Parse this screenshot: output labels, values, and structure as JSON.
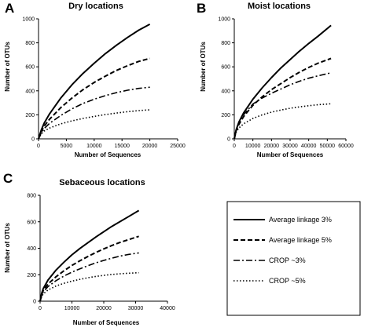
{
  "series_styles": [
    {
      "name": "Average linkage 3%",
      "dash": "none",
      "width": 2.0
    },
    {
      "name": "Average linkage 5%",
      "dash": "6,3",
      "width": 2.0
    },
    {
      "name": "CROP ~3%",
      "dash": "8,3,2,3",
      "width": 1.6
    },
    {
      "name": "CROP ~5%",
      "dash": "1.5,2.5",
      "width": 1.6
    }
  ],
  "colors": {
    "line": "#000000",
    "axis": "#000000",
    "background": "#ffffff"
  },
  "chart_data": [
    {
      "panel": "A",
      "type": "line",
      "title": "Dry locations",
      "xlabel": "Number of Sequences",
      "ylabel": "Number of OTUs",
      "xlim": [
        0,
        25000
      ],
      "ylim": [
        0,
        1000
      ],
      "xticks": [
        "0",
        "5000",
        "10000",
        "15000",
        "20000",
        "25000"
      ],
      "yticks": [
        "0",
        "200",
        "400",
        "600",
        "800",
        "1000"
      ],
      "grid": false,
      "x": [
        0,
        500,
        1000,
        2000,
        4000,
        6000,
        8000,
        10000,
        12000,
        14000,
        16000,
        18000,
        20000
      ],
      "series": [
        {
          "name": "Average linkage 3%",
          "values": [
            0,
            73,
            130,
            210,
            340,
            450,
            545,
            630,
            710,
            780,
            845,
            905,
            955
          ]
        },
        {
          "name": "Average linkage 5%",
          "values": [
            0,
            60,
            105,
            165,
            260,
            340,
            410,
            470,
            522,
            570,
            610,
            645,
            670
          ]
        },
        {
          "name": "CROP ~3%",
          "values": [
            0,
            50,
            85,
            130,
            195,
            250,
            295,
            330,
            360,
            385,
            405,
            420,
            430
          ]
        },
        {
          "name": "CROP ~5%",
          "values": [
            0,
            40,
            65,
            90,
            125,
            150,
            170,
            187,
            202,
            215,
            226,
            235,
            242
          ]
        }
      ]
    },
    {
      "panel": "B",
      "type": "line",
      "title": "Moist locations",
      "xlabel": "Number of Sequences",
      "ylabel": "Number of OTUs",
      "xlim": [
        0,
        60000
      ],
      "ylim": [
        0,
        1000
      ],
      "xticks": [
        "0",
        "10000",
        "20000",
        "30000",
        "40000",
        "50000",
        "60000"
      ],
      "yticks": [
        "0",
        "200",
        "400",
        "600",
        "800",
        "1000"
      ],
      "grid": false,
      "x": [
        0,
        1000,
        2500,
        5000,
        10000,
        15000,
        20000,
        25000,
        30000,
        35000,
        40000,
        45000,
        52000
      ],
      "series": [
        {
          "name": "Average linkage 3%",
          "values": [
            0,
            75,
            140,
            215,
            330,
            425,
            510,
            590,
            660,
            730,
            795,
            855,
            945
          ]
        },
        {
          "name": "Average linkage 5%",
          "values": [
            0,
            70,
            120,
            185,
            280,
            350,
            410,
            460,
            510,
            555,
            595,
            630,
            670
          ]
        },
        {
          "name": "CROP ~3%",
          "values": [
            0,
            75,
            135,
            200,
            290,
            340,
            380,
            415,
            450,
            480,
            505,
            525,
            550
          ]
        },
        {
          "name": "CROP ~5%",
          "values": [
            0,
            55,
            90,
            125,
            170,
            200,
            222,
            240,
            255,
            266,
            276,
            284,
            292
          ]
        }
      ]
    },
    {
      "panel": "C",
      "type": "line",
      "title": "Sebaceous locations",
      "xlabel": "Number of Sequences",
      "ylabel": "Number of OTUs",
      "xlim": [
        0,
        40000
      ],
      "ylim": [
        0,
        800
      ],
      "xticks": [
        "0",
        "10000",
        "20000",
        "30000",
        "40000"
      ],
      "yticks": [
        "0",
        "200",
        "400",
        "600",
        "800"
      ],
      "grid": false,
      "x": [
        0,
        500,
        1000,
        2500,
        5000,
        7500,
        10000,
        12500,
        15000,
        17500,
        20000,
        22500,
        25000,
        27500,
        31000
      ],
      "series": [
        {
          "name": "Average linkage 3%",
          "values": [
            0,
            60,
            95,
            160,
            235,
            295,
            350,
            398,
            442,
            485,
            525,
            565,
            600,
            635,
            685
          ]
        },
        {
          "name": "Average linkage 5%",
          "values": [
            0,
            50,
            80,
            130,
            185,
            230,
            270,
            305,
            338,
            368,
            395,
            420,
            443,
            463,
            490
          ]
        },
        {
          "name": "CROP ~3%",
          "values": [
            0,
            45,
            70,
            110,
            155,
            190,
            220,
            245,
            268,
            290,
            308,
            325,
            340,
            352,
            365
          ]
        },
        {
          "name": "CROP ~5%",
          "values": [
            0,
            35,
            55,
            85,
            115,
            135,
            152,
            165,
            177,
            187,
            195,
            202,
            207,
            211,
            215
          ]
        }
      ]
    }
  ]
}
